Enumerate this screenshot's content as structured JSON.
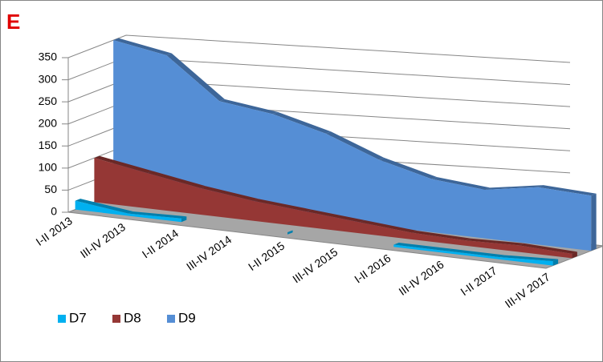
{
  "chart_data": {
    "type": "area3d",
    "title": "E",
    "categories": [
      "I-II 2013",
      "III-IV 2013",
      "I-II 2014",
      "III-IV 2014",
      "I-II 2015",
      "III-IV 2015",
      "I-II 2016",
      "III-IV 2016",
      "I-II 2017",
      "III-IV 2017"
    ],
    "series": [
      {
        "name": "D7",
        "color": "#00b0f0",
        "values": [
          20,
          5,
          8,
          null,
          5,
          null,
          5,
          5,
          5,
          10
        ]
      },
      {
        "name": "D8",
        "color": "#953735",
        "values": [
          100,
          80,
          60,
          45,
          35,
          25,
          15,
          12,
          15,
          10
        ]
      },
      {
        "name": "D9",
        "color": "#558ed5",
        "values": [
          350,
          330,
          240,
          225,
          195,
          150,
          120,
          110,
          130,
          125
        ]
      }
    ],
    "ylim": [
      0,
      350
    ],
    "yticks": [
      0,
      50,
      100,
      150,
      200,
      250,
      300,
      350
    ],
    "grid": true,
    "legend": "bottom-left"
  }
}
